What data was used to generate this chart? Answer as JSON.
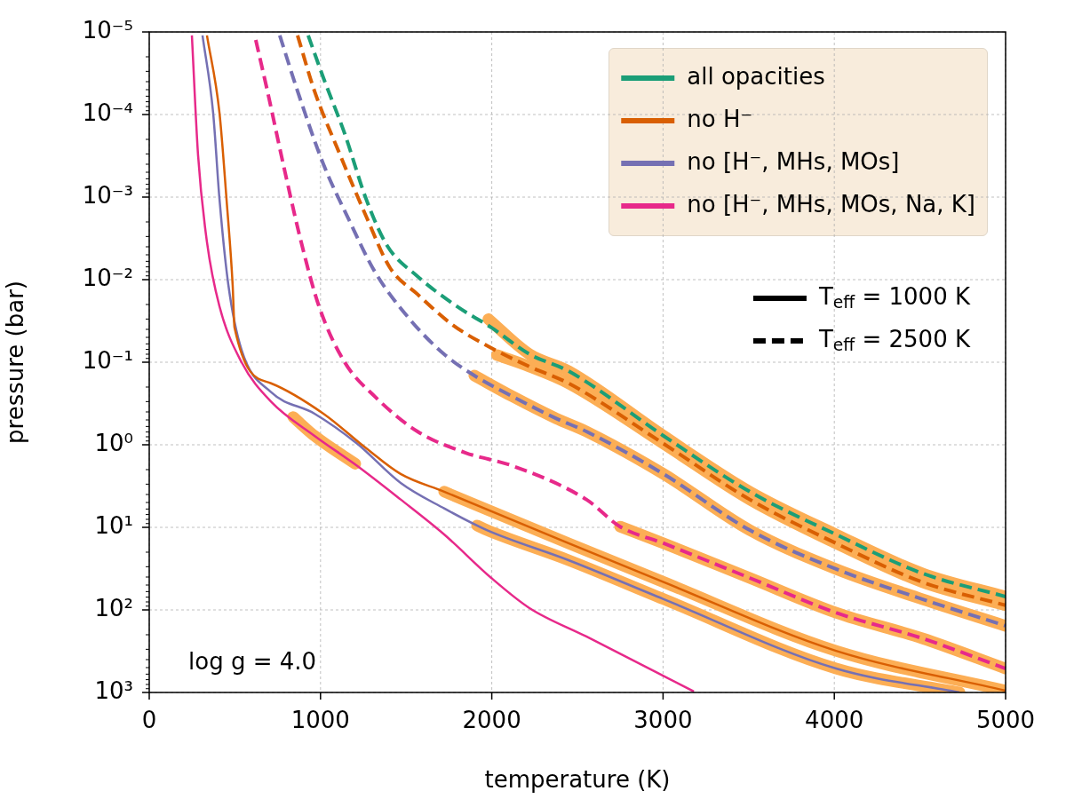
{
  "chart_data": {
    "type": "line",
    "xlabel": "temperature (K)",
    "ylabel": "pressure (bar)",
    "log": "y",
    "grid": true,
    "legend": "top right",
    "marker": "none",
    "xlim": [
      0,
      5000
    ],
    "xticks": [
      0,
      1000,
      2000,
      3000,
      4000,
      5000
    ],
    "ylim": [
      1000,
      1e-05
    ],
    "yticks": [
      {
        "value": 1e-05,
        "label": "10⁻⁵"
      },
      {
        "value": 0.0001,
        "label": "10⁻⁴"
      },
      {
        "value": 0.001,
        "label": "10⁻³"
      },
      {
        "value": 0.01,
        "label": "10⁻²"
      },
      {
        "value": 0.1,
        "label": "10⁻¹"
      },
      {
        "value": 1,
        "label": "10⁰"
      },
      {
        "value": 10,
        "label": "10¹"
      },
      {
        "value": 100,
        "label": "10²"
      },
      {
        "value": 1000,
        "label": "10³"
      }
    ],
    "annotations": [
      "log g = 4.0"
    ],
    "series": [
      {
        "color": "#fcae55",
        "line_style": "solid",
        "x": [
          1980,
          2220,
          2448,
          3003,
          3506,
          4010,
          4513,
          5000
        ],
        "values": [
          0.03,
          0.08,
          0.128,
          0.78,
          3.7,
          12.2,
          36,
          69
        ]
      },
      {
        "color": "#fcae55",
        "line_style": "solid",
        "x": [
          2030,
          2220,
          2448,
          3003,
          3506,
          4010,
          4513,
          5000
        ],
        "values": [
          0.082,
          0.113,
          0.18,
          0.97,
          4.6,
          15.6,
          46,
          88
        ]
      },
      {
        "color": "#fcae55",
        "line_style": "solid",
        "x": [
          1898,
          2121,
          2376,
          2552,
          3003,
          3506,
          4010,
          4513,
          5000
        ],
        "values": [
          0.145,
          0.26,
          0.48,
          0.69,
          2.26,
          10.8,
          32,
          74,
          156
        ]
      },
      {
        "color": "#fcae55",
        "line_style": "solid",
        "x": [
          2749,
          3003,
          3506,
          4010,
          4513,
          5000
        ],
        "values": [
          9.8,
          15.6,
          41,
          108,
          221,
          513
        ]
      },
      {
        "color": "#fcae55",
        "line_style": "solid",
        "x": [
          1722,
          2448,
          3003,
          4010,
          5000
        ],
        "values": [
          3.7,
          15.6,
          46,
          313,
          950
        ]
      },
      {
        "color": "#fcae55",
        "line_style": "solid",
        "x": [
          1914,
          1971,
          2448,
          3003,
          4010,
          4731
        ],
        "values": [
          9.5,
          10.8,
          25,
          74,
          513,
          1000
        ]
      },
      {
        "color": "#fcae55",
        "line_style": "solid",
        "x": [
          840,
          965,
          1203
        ],
        "values": [
          0.46,
          0.78,
          1.7
        ]
      },
      {
        "name": "all opacities",
        "color": "#1b9e77",
        "line_style": "dashed",
        "x": [
          928,
          1017,
          1141,
          1266,
          1390,
          1566,
          1795,
          1997,
          2220,
          2448,
          3003,
          3506,
          4010,
          4513,
          5000
        ],
        "values": [
          1.1e-05,
          3.6e-05,
          0.00017,
          0.00105,
          0.0039,
          0.0091,
          0.021,
          0.038,
          0.08,
          0.128,
          0.78,
          3.7,
          12.2,
          36,
          69
        ]
      },
      {
        "name": "no H⁻",
        "color": "#d95f02",
        "line_style": "solid",
        "x": [
          337,
          410,
          451,
          487,
          498,
          711,
          1017,
          1266,
          1468,
          1722,
          2448,
          3003,
          4010,
          5000
        ],
        "values": [
          1.1e-05,
          9.5e-05,
          0.00105,
          0.0116,
          0.038,
          0.18,
          0.42,
          1.1,
          2.26,
          3.7,
          15.6,
          46,
          313,
          950
        ]
      },
      {
        "color": "#d95f02",
        "line_style": "dashed",
        "x": [
          866,
          965,
          1115,
          1266,
          1406,
          1566,
          1769,
          1971,
          2220,
          2448,
          3003,
          3506,
          4010,
          4513,
          5000
        ],
        "values": [
          1.1e-05,
          5.2e-05,
          0.00031,
          0.0017,
          0.0072,
          0.015,
          0.035,
          0.063,
          0.113,
          0.18,
          0.97,
          4.6,
          15.6,
          46,
          88
        ]
      },
      {
        "name": "no [H⁻, MHs, MOs]",
        "color": "#7570b3",
        "line_style": "solid",
        "x": [
          311,
          373,
          410,
          462,
          539,
          711,
          965,
          1214,
          1468,
          1722,
          1971,
          2448,
          3003,
          4010,
          4731
        ],
        "values": [
          1.1e-05,
          9.5e-05,
          0.00105,
          0.0116,
          0.071,
          0.23,
          0.42,
          0.97,
          2.9,
          5.9,
          10.8,
          25,
          74,
          513,
          1000
        ]
      },
      {
        "color": "#7570b3",
        "line_style": "dashed",
        "x": [
          762,
          866,
          1017,
          1167,
          1317,
          1520,
          1722,
          1898,
          2121,
          2376,
          2552,
          3003,
          3506,
          4010,
          4513,
          5000
        ],
        "values": [
          1.1e-05,
          5.2e-05,
          0.0004,
          0.0019,
          0.008,
          0.03,
          0.08,
          0.145,
          0.26,
          0.48,
          0.69,
          2.26,
          10.8,
          32,
          74,
          156
        ]
      },
      {
        "name": "no [H⁻, MHs, MOs, Na, K]",
        "color": "#e7298a",
        "line_style": "solid",
        "x": [
          249,
          285,
          337,
          410,
          539,
          711,
          965,
          1214,
          1468,
          1722,
          1997,
          2220,
          2552,
          3180
        ],
        "values": [
          1.1e-05,
          0.00031,
          0.0035,
          0.021,
          0.1,
          0.3,
          0.78,
          1.8,
          4.6,
          12.2,
          41,
          95,
          210,
          975
        ]
      },
      {
        "color": "#e7298a",
        "line_style": "dashed",
        "x": [
          622,
          690,
          788,
          887,
          991,
          1141,
          1317,
          1566,
          1847,
          2121,
          2552,
          2749,
          3003,
          3506,
          4010,
          4513,
          5000
        ],
        "values": [
          1.25e-05,
          5.2e-05,
          0.00045,
          0.0035,
          0.021,
          0.1,
          0.26,
          0.69,
          1.25,
          1.8,
          4.6,
          9.8,
          15.6,
          41,
          108,
          221,
          513
        ]
      },
      {
        "name": "T$_{eff}$ = 1000 K",
        "color": "#000000",
        "line_style": "solid"
      },
      {
        "name": "T$_{eff}$ = 2500 K",
        "color": "#000000",
        "line_style": "dashed"
      }
    ]
  }
}
